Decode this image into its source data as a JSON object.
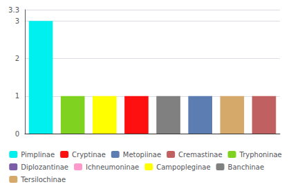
{
  "chart_data": {
    "type": "bar",
    "categories": [
      null,
      null,
      null,
      null,
      null,
      null,
      null,
      null
    ],
    "series": [
      {
        "name": "Pimplinae",
        "color": "#00EFEF",
        "values": [
          3,
          null,
          null,
          null,
          null,
          null,
          null,
          null
        ]
      },
      {
        "name": "Cryptinae",
        "color": "#FF1010",
        "values": [
          null,
          null,
          null,
          1,
          null,
          null,
          null,
          null
        ]
      },
      {
        "name": "Metopiinae",
        "color": "#5B7DB1",
        "values": [
          null,
          null,
          null,
          null,
          null,
          1,
          null,
          null
        ]
      },
      {
        "name": "Cremastinae",
        "color": "#C06060",
        "values": [
          null,
          null,
          null,
          null,
          null,
          null,
          null,
          1
        ]
      },
      {
        "name": "Tryphoninae",
        "color": "#7FD320",
        "values": [
          null,
          1,
          null,
          null,
          null,
          null,
          null,
          null
        ]
      },
      {
        "name": "Diplozantinae",
        "color": "#7B5EA7",
        "values": [
          null,
          null,
          null,
          null,
          null,
          null,
          null,
          null
        ]
      },
      {
        "name": "Ichneumoninae",
        "color": "#FF99CC",
        "values": [
          null,
          null,
          null,
          null,
          null,
          null,
          null,
          null
        ]
      },
      {
        "name": "Campopleginae",
        "color": "#FFFF00",
        "values": [
          null,
          null,
          1,
          null,
          null,
          null,
          null,
          null
        ]
      },
      {
        "name": "Banchinae",
        "color": "#808080",
        "values": [
          null,
          null,
          null,
          null,
          1,
          null,
          null,
          null
        ]
      },
      {
        "name": "Tersilochinae",
        "color": "#D4A96A",
        "values": [
          null,
          null,
          null,
          null,
          null,
          null,
          1,
          null
        ]
      }
    ],
    "stacked": true,
    "ylim": [
      0,
      3.3
    ],
    "yticks": [
      0,
      1,
      2,
      3
    ],
    "grid": true,
    "legend": "bottom",
    "tick_labels": "y"
  }
}
